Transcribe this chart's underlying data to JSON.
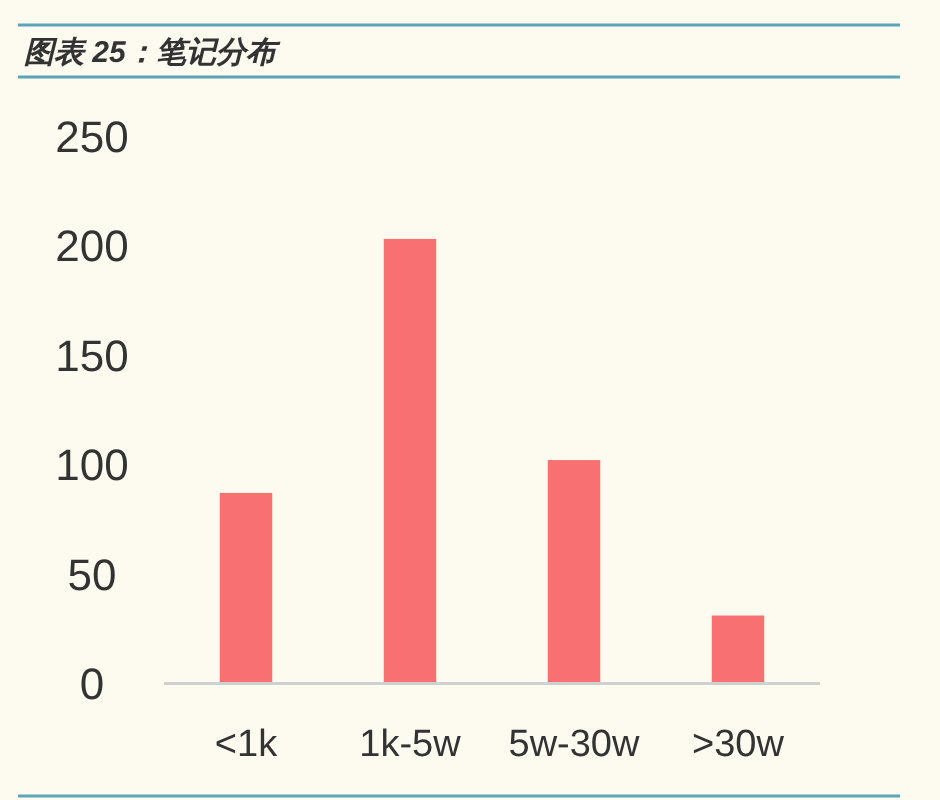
{
  "chart_data": {
    "type": "bar",
    "title": "图表 25：笔记分布",
    "categories": [
      "<1k",
      "1k-5w",
      "5w-30w",
      ">30w"
    ],
    "values": [
      87,
      203,
      102,
      31
    ],
    "color": "#f87171",
    "ylim": [
      0,
      250
    ],
    "yticks": [
      0,
      50,
      100,
      150,
      200,
      250
    ],
    "grid": false
  }
}
